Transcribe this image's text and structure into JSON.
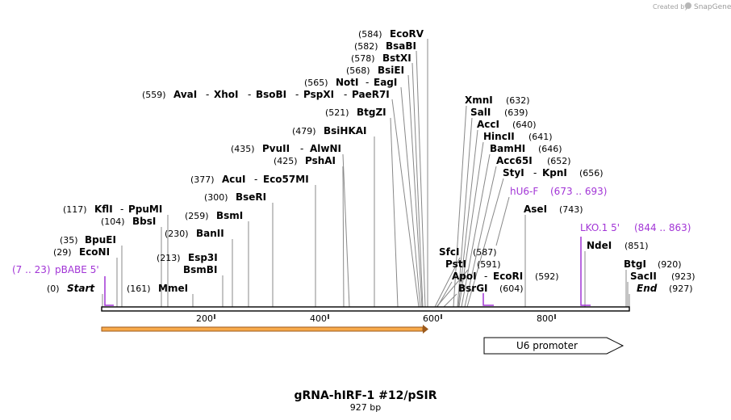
{
  "credit": {
    "prefix": "Created by",
    "brand": "SnapGene"
  },
  "title": "gRNA-hIRF-1 #12/pSIR",
  "subtitle": "927 bp",
  "ticks": [
    "200",
    "400",
    "600",
    "800"
  ],
  "promoter": {
    "label": "U6 promoter"
  },
  "sites": [
    {
      "pos": "(584)",
      "name": "EcoRV"
    },
    {
      "pos": "(582)",
      "name": "BsaBI"
    },
    {
      "pos": "(578)",
      "name": "BstXI"
    },
    {
      "pos": "(568)",
      "name": "BsiEI"
    },
    {
      "pos": "(565)",
      "names": [
        "NotI",
        "EagI"
      ]
    },
    {
      "pos": "(559)",
      "names": [
        "AvaI",
        "XhoI",
        "BsoBI",
        "PspXI",
        "PaeR7I"
      ]
    },
    {
      "pos": "(521)",
      "name": "BtgZI"
    },
    {
      "pos": "(479)",
      "name": "BsiHKAI"
    },
    {
      "pos": "(435)",
      "names": [
        "PvuII",
        "AlwNI"
      ]
    },
    {
      "pos": "(425)",
      "name": "PshAI"
    },
    {
      "pos": "(377)",
      "names": [
        "AcuI",
        "Eco57MI"
      ]
    },
    {
      "pos": "(300)",
      "name": "BseRI"
    },
    {
      "pos": "(259)",
      "name": "BsmI"
    },
    {
      "pos": "(230)",
      "name": "BanII"
    },
    {
      "pos": "(213)",
      "name": "Esp3I"
    },
    {
      "name": "BsmBI"
    },
    {
      "pos": "(161)",
      "name": "MmeI"
    },
    {
      "pos": "(117)",
      "names": [
        "KflI",
        "PpuMI"
      ]
    },
    {
      "pos": "(104)",
      "name": "BbsI"
    },
    {
      "pos": "(35)",
      "name": "BpuEI"
    },
    {
      "pos": "(29)",
      "name": "EcoNI"
    },
    {
      "pos": "(0)",
      "name": "Start"
    },
    {
      "pos": "(632)",
      "name": "XmnI"
    },
    {
      "pos": "(639)",
      "name": "SalI"
    },
    {
      "pos": "(640)",
      "name": "AccI"
    },
    {
      "pos": "(641)",
      "name": "HincII"
    },
    {
      "pos": "(646)",
      "name": "BamHI"
    },
    {
      "pos": "(652)",
      "name": "Acc65I"
    },
    {
      "pos": "(656)",
      "names": [
        "StyI",
        "KpnI"
      ]
    },
    {
      "pos": "(743)",
      "name": "AseI"
    },
    {
      "pos": "(851)",
      "name": "NdeI"
    },
    {
      "pos": "(920)",
      "name": "BtgI"
    },
    {
      "pos": "(923)",
      "name": "SacII"
    },
    {
      "pos": "(927)",
      "name": "End"
    },
    {
      "pos": "(587)",
      "name": "SfcI"
    },
    {
      "pos": "(591)",
      "name": "PstI"
    },
    {
      "pos": "(592)",
      "names": [
        "ApoI",
        "EcoRI"
      ]
    },
    {
      "pos": "(604)",
      "name": "BsrGI"
    }
  ],
  "features": [
    {
      "label": "hU6-F",
      "range": "(673 .. 693)",
      "color": "#a235d6"
    },
    {
      "label": "LKO.1 5'",
      "range": "(844 .. 863)",
      "color": "#a235d6"
    },
    {
      "label": "pBABE 5'",
      "range": "(7 .. 23)",
      "color": "#a235d6"
    }
  ],
  "colors": {
    "primer": "#a235d6",
    "orf_fill": "#f7a94a",
    "orf_stroke": "#9c5a1c",
    "backbone": "#000000"
  }
}
